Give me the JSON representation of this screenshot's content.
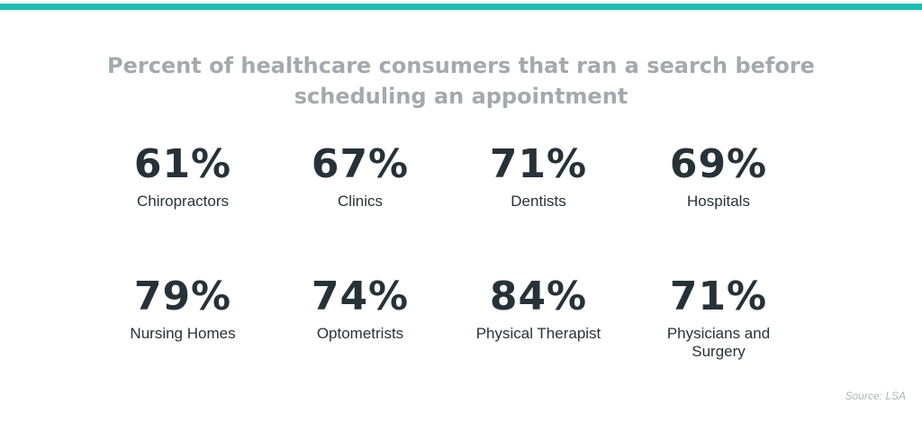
{
  "colors": {
    "accent_bar": "#19bfb4",
    "title": "#a3aaad",
    "value": "#263238",
    "label": "#263238",
    "source": "#b0b5b8"
  },
  "chart_data": {
    "type": "table",
    "title": "Percent of healthcare consumers that ran a search before scheduling an appointment",
    "unit": "%",
    "categories": [
      "Chiropractors",
      "Clinics",
      "Dentists",
      "Hospitals",
      "Nursing Homes",
      "Optometrists",
      "Physical Therapist",
      "Physicians and Surgery"
    ],
    "values": [
      61,
      67,
      71,
      69,
      79,
      74,
      84,
      71
    ],
    "value_labels": [
      "61%",
      "67%",
      "71%",
      "69%",
      "79%",
      "74%",
      "84%",
      "71%"
    ],
    "source": "Source: LSA"
  }
}
